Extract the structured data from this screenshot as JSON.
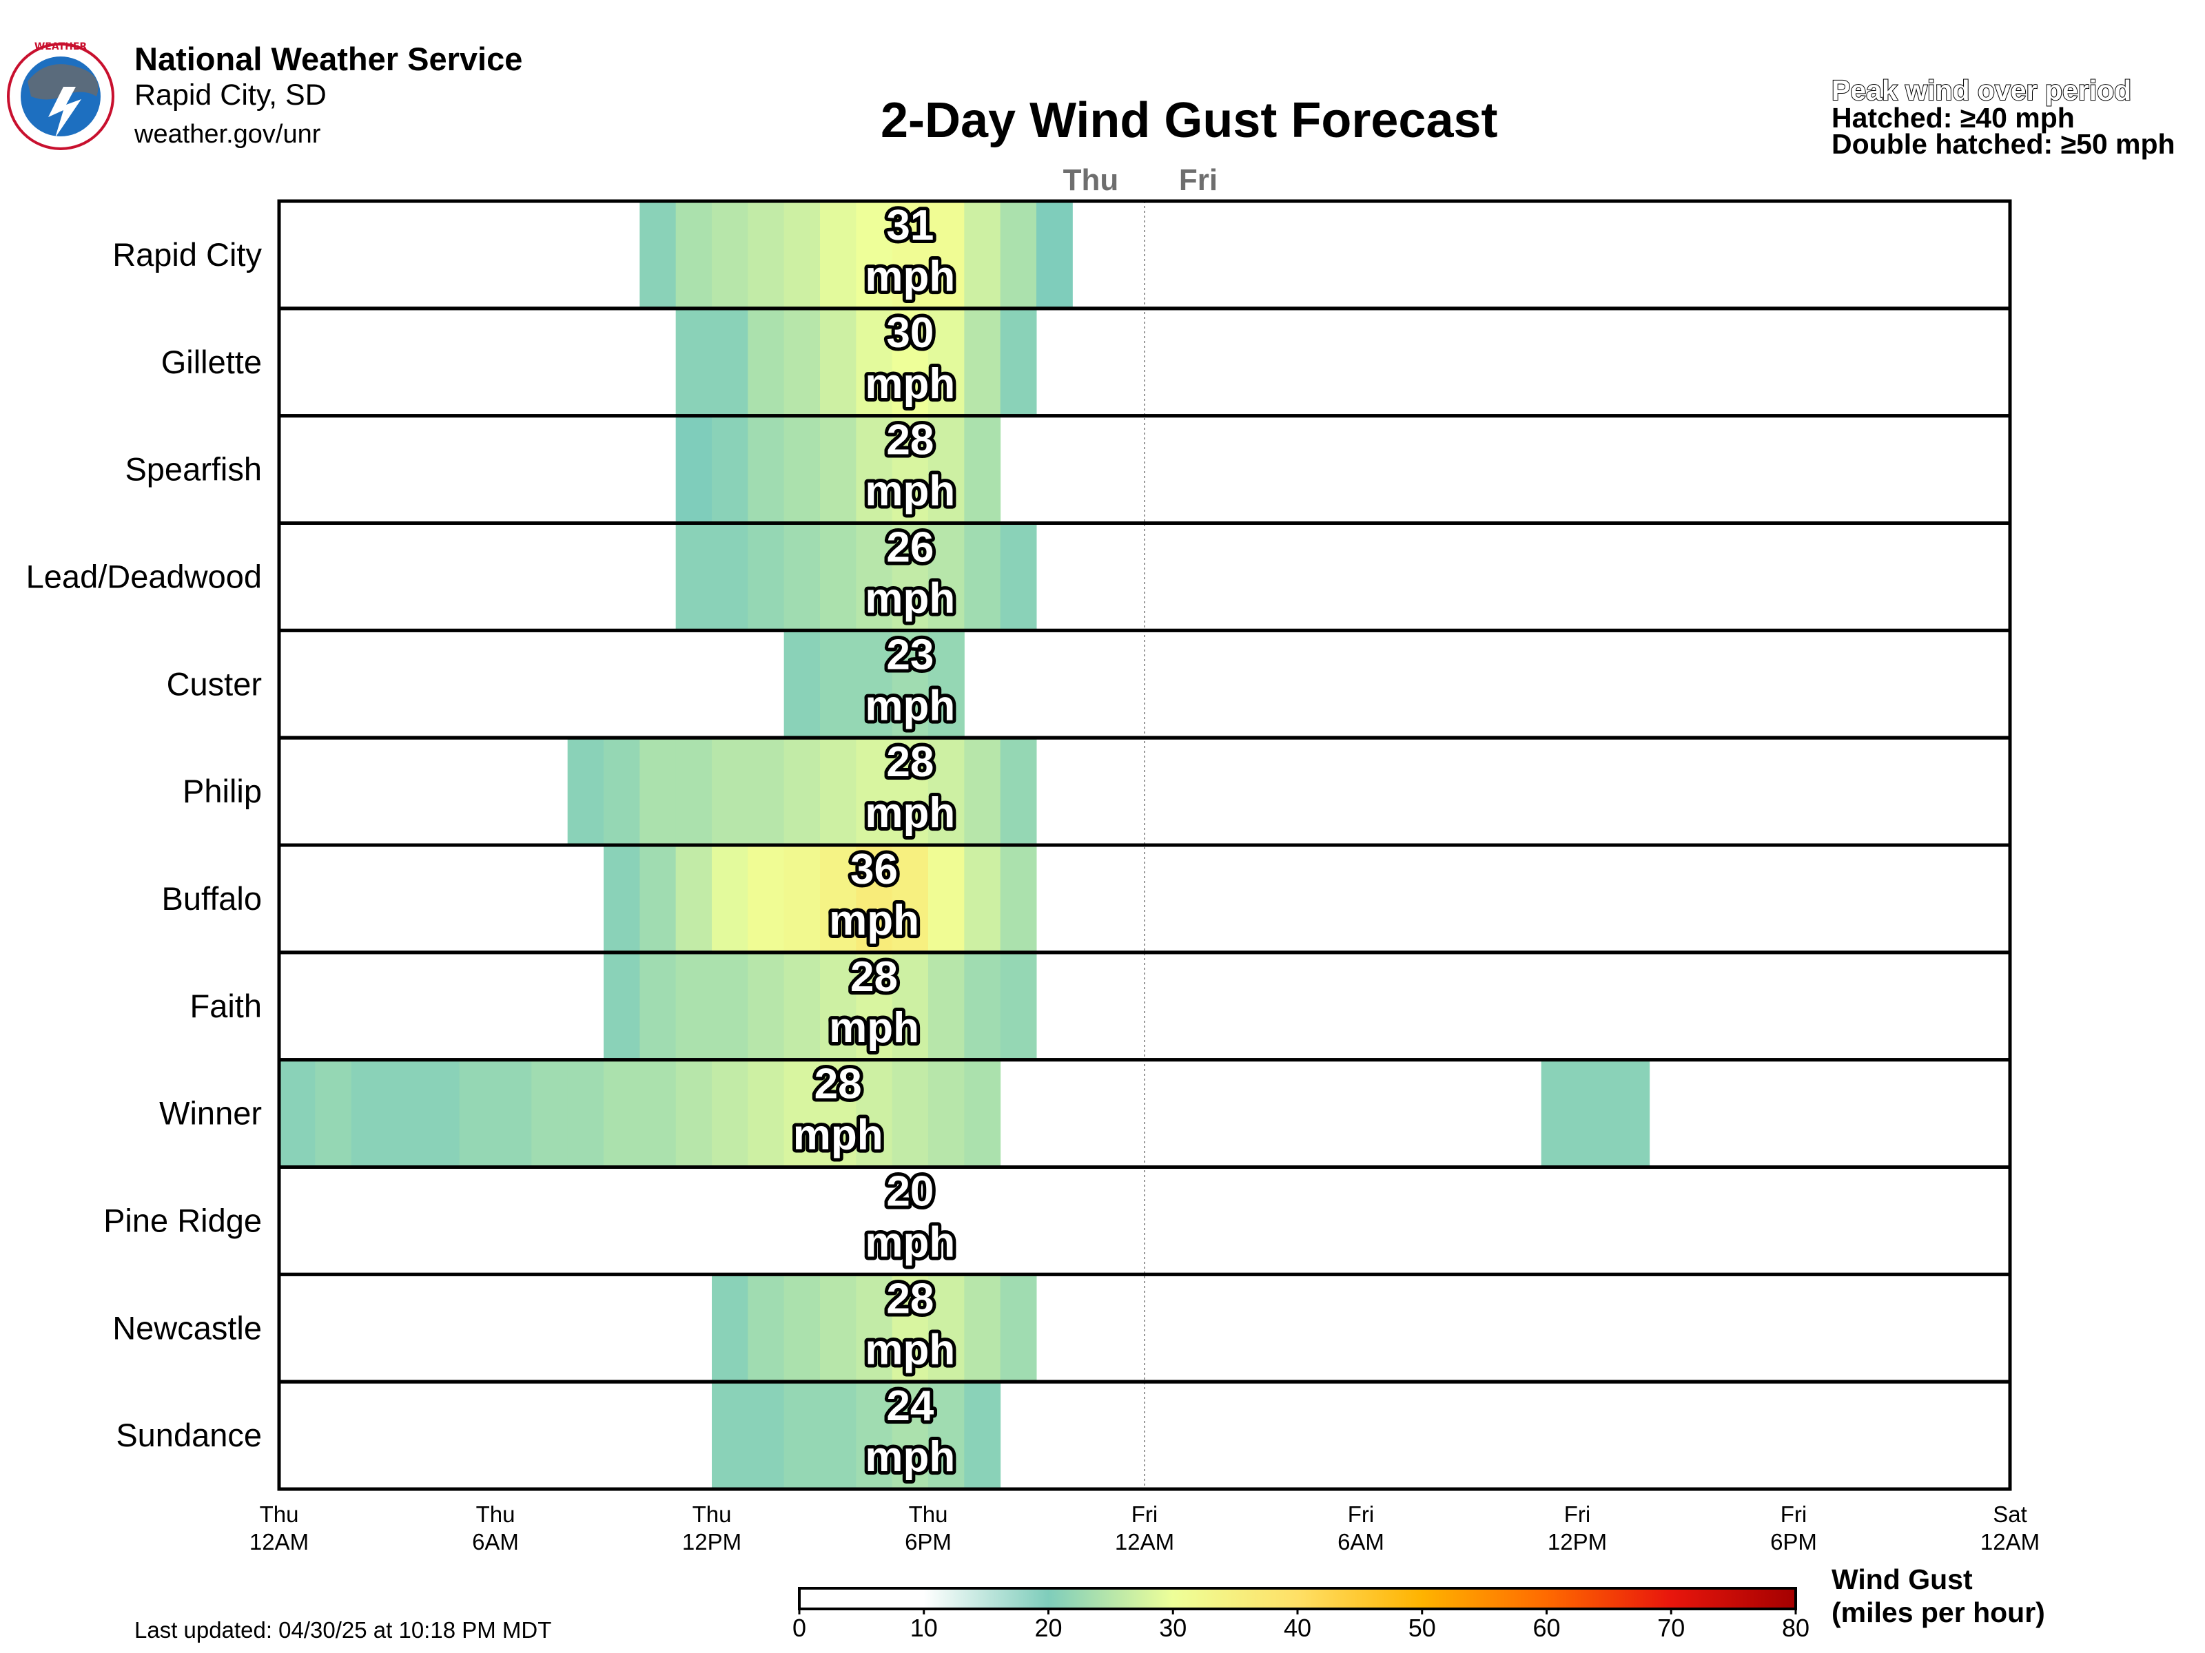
{
  "header": {
    "org": "National Weather Service",
    "office": "Rapid City, SD",
    "site": "weather.gov/unr"
  },
  "legend_note": {
    "line1": "Peak wind over period",
    "line2": "Hatched: ≥40 mph",
    "line3": "Double hatched: ≥50 mph"
  },
  "footer": {
    "updated": "Last updated: 04/30/25 at 10:18 PM MDT"
  },
  "colorbar": {
    "title": "Wind Gust",
    "unit": "(miles per hour)",
    "ticks": [
      0,
      10,
      20,
      30,
      40,
      50,
      60,
      70,
      80
    ],
    "colors": [
      "#ffffff",
      "#ffffff",
      "#7fcdbb",
      "#eeff99",
      "#ffe066",
      "#ffb300",
      "#ff6a00",
      "#e8160c",
      "#a40000"
    ]
  },
  "chart_data": {
    "type": "heatmap",
    "title": "2-Day Wind Gust Forecast",
    "day_labels": [
      "Thu",
      "Fri"
    ],
    "x_ticks": [
      "Thu 12AM",
      "Thu 6AM",
      "Thu 12PM",
      "Thu 6PM",
      "Fri 12AM",
      "Fri 6AM",
      "Fri 12PM",
      "Fri 6PM",
      "Sat 12AM"
    ],
    "x_range_hours": [
      0,
      48
    ],
    "step_hours": 1,
    "rows": [
      {
        "name": "Rapid City",
        "peak": "31",
        "unit": "mph",
        "peak_hour": 17,
        "cells": [
          [
            10,
            21
          ],
          [
            11,
            24
          ],
          [
            12,
            25
          ],
          [
            13,
            26
          ],
          [
            14,
            27
          ],
          [
            15,
            29
          ],
          [
            16,
            30
          ],
          [
            17,
            31
          ],
          [
            18,
            31
          ],
          [
            19,
            27
          ],
          [
            20,
            24
          ],
          [
            21,
            20
          ]
        ]
      },
      {
        "name": "Gillette",
        "peak": "30",
        "unit": "mph",
        "peak_hour": 17,
        "cells": [
          [
            11,
            21
          ],
          [
            12,
            21
          ],
          [
            13,
            24
          ],
          [
            14,
            25
          ],
          [
            15,
            27
          ],
          [
            16,
            29
          ],
          [
            17,
            30
          ],
          [
            18,
            29
          ],
          [
            19,
            25
          ],
          [
            20,
            21
          ]
        ]
      },
      {
        "name": "Spearfish",
        "peak": "28",
        "unit": "mph",
        "peak_hour": 17,
        "cells": [
          [
            11,
            20
          ],
          [
            12,
            21
          ],
          [
            13,
            23
          ],
          [
            14,
            24
          ],
          [
            15,
            25
          ],
          [
            16,
            27
          ],
          [
            17,
            28
          ],
          [
            18,
            27
          ],
          [
            19,
            24
          ]
        ]
      },
      {
        "name": "Lead/Deadwood",
        "peak": "26",
        "unit": "mph",
        "peak_hour": 17,
        "cells": [
          [
            11,
            21
          ],
          [
            12,
            21
          ],
          [
            13,
            22
          ],
          [
            14,
            23
          ],
          [
            15,
            24
          ],
          [
            16,
            25
          ],
          [
            17,
            26
          ],
          [
            18,
            25
          ],
          [
            19,
            23
          ],
          [
            20,
            21
          ]
        ]
      },
      {
        "name": "Custer",
        "peak": "23",
        "unit": "mph",
        "peak_hour": 17,
        "cells": [
          [
            14,
            21
          ],
          [
            15,
            22
          ],
          [
            16,
            22
          ],
          [
            17,
            23
          ],
          [
            18,
            22
          ]
        ]
      },
      {
        "name": "Philip",
        "peak": "28",
        "unit": "mph",
        "peak_hour": 17,
        "cells": [
          [
            8,
            21
          ],
          [
            9,
            22
          ],
          [
            10,
            24
          ],
          [
            11,
            24
          ],
          [
            12,
            25
          ],
          [
            13,
            25
          ],
          [
            14,
            26
          ],
          [
            15,
            27
          ],
          [
            16,
            28
          ],
          [
            17,
            28
          ],
          [
            18,
            27
          ],
          [
            19,
            25
          ],
          [
            20,
            22
          ]
        ]
      },
      {
        "name": "Buffalo",
        "peak": "36",
        "unit": "mph",
        "peak_hour": 16,
        "cells": [
          [
            9,
            21
          ],
          [
            10,
            23
          ],
          [
            11,
            26
          ],
          [
            12,
            29
          ],
          [
            13,
            31
          ],
          [
            14,
            32
          ],
          [
            15,
            34
          ],
          [
            16,
            36
          ],
          [
            17,
            35
          ],
          [
            18,
            31
          ],
          [
            19,
            27
          ],
          [
            20,
            24
          ]
        ]
      },
      {
        "name": "Faith",
        "peak": "28",
        "unit": "mph",
        "peak_hour": 16,
        "cells": [
          [
            9,
            21
          ],
          [
            10,
            23
          ],
          [
            11,
            24
          ],
          [
            12,
            24
          ],
          [
            13,
            25
          ],
          [
            14,
            26
          ],
          [
            15,
            27
          ],
          [
            16,
            28
          ],
          [
            17,
            27
          ],
          [
            18,
            25
          ],
          [
            19,
            23
          ],
          [
            20,
            22
          ]
        ]
      },
      {
        "name": "Winner",
        "peak": "28",
        "unit": "mph",
        "peak_hour": 15,
        "cells": [
          [
            0,
            21
          ],
          [
            1,
            22
          ],
          [
            2,
            21
          ],
          [
            3,
            21
          ],
          [
            4,
            21
          ],
          [
            5,
            22
          ],
          [
            6,
            22
          ],
          [
            7,
            23
          ],
          [
            8,
            23
          ],
          [
            9,
            24
          ],
          [
            10,
            24
          ],
          [
            11,
            25
          ],
          [
            12,
            26
          ],
          [
            13,
            27
          ],
          [
            14,
            28
          ],
          [
            15,
            28
          ],
          [
            16,
            27
          ],
          [
            17,
            26
          ],
          [
            18,
            25
          ],
          [
            19,
            24
          ],
          [
            35,
            21
          ],
          [
            36,
            21
          ],
          [
            37,
            21
          ]
        ]
      },
      {
        "name": "Pine Ridge",
        "peak": "20",
        "unit": "mph",
        "peak_hour": 17,
        "cells": []
      },
      {
        "name": "Newcastle",
        "peak": "28",
        "unit": "mph",
        "peak_hour": 17,
        "cells": [
          [
            12,
            21
          ],
          [
            13,
            23
          ],
          [
            14,
            24
          ],
          [
            15,
            25
          ],
          [
            16,
            26
          ],
          [
            17,
            28
          ],
          [
            18,
            27
          ],
          [
            19,
            25
          ],
          [
            20,
            23
          ]
        ]
      },
      {
        "name": "Sundance",
        "peak": "24",
        "unit": "mph",
        "peak_hour": 17,
        "cells": [
          [
            12,
            21
          ],
          [
            13,
            21
          ],
          [
            14,
            22
          ],
          [
            15,
            22
          ],
          [
            16,
            23
          ],
          [
            17,
            24
          ],
          [
            18,
            23
          ],
          [
            19,
            21
          ]
        ]
      }
    ],
    "colorscale_range": [
      0,
      80
    ]
  }
}
